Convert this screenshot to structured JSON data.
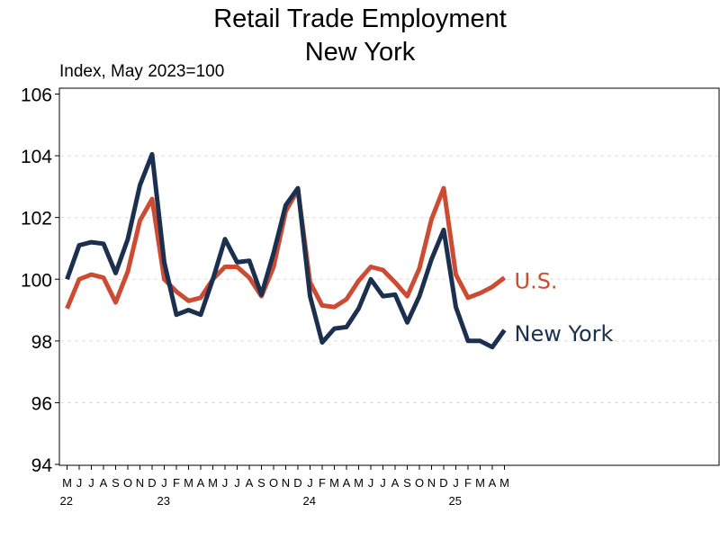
{
  "chart_data": {
    "type": "line",
    "title": [
      "Retail Trade Employment",
      "New York"
    ],
    "ylabel": "Index, May 2023=100",
    "ylim": [
      94,
      106
    ],
    "yticks": [
      94,
      96,
      98,
      100,
      102,
      104,
      106
    ],
    "grid": "horizontal-dashed",
    "x": [
      "2022-05",
      "2022-06",
      "2022-07",
      "2022-08",
      "2022-09",
      "2022-10",
      "2022-11",
      "2022-12",
      "2023-01",
      "2023-02",
      "2023-03",
      "2023-04",
      "2023-05",
      "2023-06",
      "2023-07",
      "2023-08",
      "2023-09",
      "2023-10",
      "2023-11",
      "2023-12",
      "2024-01",
      "2024-02",
      "2024-03",
      "2024-04",
      "2024-05",
      "2024-06",
      "2024-07",
      "2024-08",
      "2024-09",
      "2024-10",
      "2024-11",
      "2024-12",
      "2025-01",
      "2025-02",
      "2025-03",
      "2025-04",
      "2025-05"
    ],
    "x_tick_labels": [
      "M",
      "J",
      "J",
      "A",
      "S",
      "O",
      "N",
      "D",
      "J",
      "F",
      "M",
      "A",
      "M",
      "J",
      "J",
      "A",
      "S",
      "O",
      "N",
      "D",
      "J",
      "F",
      "M",
      "A",
      "M",
      "J",
      "J",
      "A",
      "S",
      "O",
      "N",
      "D",
      "J",
      "F",
      "M",
      "A",
      "M"
    ],
    "year_labels": [
      {
        "label": "22",
        "index": 0
      },
      {
        "label": "23",
        "index": 8
      },
      {
        "label": "24",
        "index": 20
      },
      {
        "label": "25",
        "index": 32
      }
    ],
    "series": [
      {
        "name": "U.S.",
        "color": "#cc4b32",
        "values": [
          99.05,
          100.0,
          100.15,
          100.05,
          99.25,
          100.25,
          101.9,
          102.6,
          100.0,
          99.6,
          99.3,
          99.4,
          100.0,
          100.4,
          100.4,
          100.05,
          99.45,
          100.4,
          102.2,
          102.9,
          99.9,
          99.15,
          99.1,
          99.35,
          99.95,
          100.4,
          100.3,
          99.9,
          99.45,
          100.35,
          101.95,
          102.95,
          100.15,
          99.4,
          99.55,
          99.75,
          100.05
        ]
      },
      {
        "name": "New York",
        "color": "#1b2f4e",
        "values": [
          100.0,
          101.1,
          101.2,
          101.15,
          100.2,
          101.3,
          103.05,
          104.05,
          100.55,
          98.85,
          99.0,
          98.85,
          100.0,
          101.3,
          100.55,
          100.6,
          99.5,
          100.85,
          102.4,
          102.95,
          99.45,
          97.95,
          98.4,
          98.45,
          99.05,
          100.0,
          99.45,
          99.5,
          98.6,
          99.45,
          100.65,
          101.6,
          99.1,
          98.0,
          98.0,
          97.8,
          98.35
        ]
      }
    ]
  }
}
